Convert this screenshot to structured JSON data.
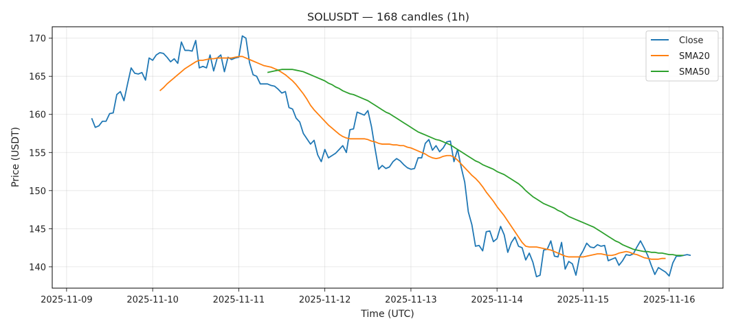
{
  "chart_data": {
    "type": "line",
    "title": "SOLUSDT — 168 candles (1h)",
    "xlabel": "Time (UTC)",
    "ylabel": "Price (USDT)",
    "x_ticks": [
      "2025-11-09",
      "2025-11-10",
      "2025-11-11",
      "2025-11-12",
      "2025-11-13",
      "2025-11-14",
      "2025-11-15",
      "2025-11-16"
    ],
    "y_ticks": [
      140,
      145,
      150,
      155,
      160,
      165,
      170
    ],
    "xlim": [
      "2025-11-08T20:00",
      "2025-11-16T15:00"
    ],
    "ylim": [
      137.2,
      171.5
    ],
    "grid": true,
    "legend_position": "top-right",
    "series": [
      {
        "name": "Close",
        "color": "#1f77b4",
        "start": "2025-11-09T07:00",
        "interval_hours": 1,
        "values": [
          159.5,
          158.3,
          158.5,
          159.1,
          159.1,
          160.1,
          160.2,
          162.6,
          163.0,
          161.8,
          164.0,
          166.1,
          165.4,
          165.3,
          165.5,
          164.5,
          167.4,
          167.1,
          167.8,
          168.1,
          168.0,
          167.5,
          166.9,
          167.3,
          166.7,
          169.5,
          168.4,
          168.4,
          168.3,
          169.7,
          166.1,
          166.3,
          166.1,
          167.8,
          165.7,
          167.4,
          167.8,
          165.6,
          167.5,
          167.2,
          167.4,
          167.5,
          170.3,
          170.0,
          166.8,
          165.2,
          165.0,
          164.0,
          164.0,
          164.0,
          163.8,
          163.7,
          163.3,
          162.8,
          163.0,
          160.9,
          160.7,
          159.5,
          159.0,
          157.5,
          156.8,
          156.1,
          156.6,
          154.7,
          153.8,
          155.4,
          154.3,
          154.6,
          154.9,
          155.4,
          155.9,
          155.0,
          158.0,
          158.1,
          160.3,
          160.1,
          159.9,
          160.5,
          158.4,
          155.5,
          152.8,
          153.3,
          152.9,
          153.1,
          153.8,
          154.2,
          153.9,
          153.4,
          153.0,
          152.8,
          152.9,
          154.3,
          154.3,
          156.2,
          156.7,
          155.3,
          155.9,
          155.1,
          155.6,
          156.4,
          156.5,
          153.8,
          155.4,
          153.1,
          151.1,
          147.2,
          145.5,
          142.7,
          142.8,
          142.1,
          144.6,
          144.7,
          143.3,
          143.7,
          145.3,
          144.2,
          141.9,
          143.2,
          143.9,
          142.7,
          142.5,
          140.9,
          141.8,
          140.6,
          138.7,
          138.9,
          142.2,
          142.3,
          143.4,
          141.4,
          141.3,
          143.2,
          139.7,
          140.7,
          140.4,
          138.9,
          141.3,
          142.1,
          143.1,
          142.6,
          142.5,
          142.9,
          142.7,
          142.8,
          140.8,
          141.0,
          141.2,
          140.2,
          140.8,
          141.6,
          141.5,
          141.7,
          142.6,
          143.4,
          142.5,
          141.5,
          140.2,
          139.0,
          139.9,
          139.6,
          139.3,
          138.8,
          140.5,
          141.4,
          141.4,
          141.5,
          141.6,
          141.5
        ]
      },
      {
        "name": "SMA20",
        "color": "#ff7f0e",
        "start": "2025-11-10T02:00",
        "interval_hours": 1,
        "values": [
          163.1,
          163.5,
          164.0,
          164.4,
          164.8,
          165.2,
          165.6,
          166.0,
          166.3,
          166.6,
          166.9,
          167.1,
          167.1,
          167.2,
          167.3,
          167.3,
          167.4,
          167.4,
          167.4,
          167.4,
          167.4,
          167.5,
          167.6,
          167.6,
          167.4,
          167.2,
          167.0,
          166.8,
          166.6,
          166.4,
          166.3,
          166.2,
          166.0,
          165.8,
          165.5,
          165.2,
          164.8,
          164.4,
          163.9,
          163.3,
          162.7,
          162.0,
          161.2,
          160.6,
          160.1,
          159.6,
          159.1,
          158.6,
          158.2,
          157.8,
          157.4,
          157.1,
          156.9,
          156.8,
          156.8,
          156.8,
          156.8,
          156.8,
          156.7,
          156.5,
          156.4,
          156.2,
          156.1,
          156.1,
          156.1,
          156.0,
          156.0,
          155.9,
          155.9,
          155.7,
          155.6,
          155.4,
          155.2,
          155.0,
          154.8,
          154.5,
          154.3,
          154.2,
          154.3,
          154.5,
          154.6,
          154.6,
          154.4,
          154.0,
          153.5,
          153.0,
          152.5,
          152.0,
          151.6,
          151.1,
          150.5,
          149.8,
          149.2,
          148.6,
          147.9,
          147.3,
          146.7,
          146.0,
          145.3,
          144.6,
          143.9,
          143.2,
          142.7,
          142.6,
          142.6,
          142.6,
          142.5,
          142.4,
          142.3,
          142.2,
          142.0,
          141.8,
          141.6,
          141.4,
          141.3,
          141.3,
          141.3,
          141.3,
          141.3,
          141.4,
          141.5,
          141.6,
          141.7,
          141.7,
          141.6,
          141.5,
          141.5,
          141.6,
          141.8,
          141.9,
          142.0,
          141.9,
          141.7,
          141.6,
          141.4,
          141.2,
          141.1,
          141.0,
          141.0,
          141.0,
          141.1,
          141.1
        ]
      },
      {
        "name": "SMA50",
        "color": "#2ca02c",
        "start": "2025-11-11T08:00",
        "interval_hours": 1,
        "values": [
          165.5,
          165.6,
          165.7,
          165.8,
          165.9,
          165.9,
          165.9,
          165.9,
          165.8,
          165.7,
          165.6,
          165.4,
          165.2,
          165.0,
          164.8,
          164.6,
          164.4,
          164.1,
          163.9,
          163.6,
          163.4,
          163.1,
          162.9,
          162.7,
          162.6,
          162.4,
          162.2,
          162.0,
          161.8,
          161.5,
          161.2,
          160.9,
          160.6,
          160.3,
          160.1,
          159.8,
          159.5,
          159.2,
          158.9,
          158.6,
          158.3,
          158.0,
          157.7,
          157.5,
          157.3,
          157.1,
          156.9,
          156.7,
          156.6,
          156.4,
          156.2,
          156.0,
          155.7,
          155.4,
          155.1,
          154.8,
          154.5,
          154.2,
          153.9,
          153.7,
          153.4,
          153.2,
          153.0,
          152.8,
          152.5,
          152.3,
          152.1,
          151.8,
          151.5,
          151.2,
          150.9,
          150.5,
          150.0,
          149.6,
          149.2,
          148.9,
          148.6,
          148.3,
          148.1,
          147.9,
          147.7,
          147.4,
          147.2,
          146.9,
          146.6,
          146.4,
          146.2,
          146.0,
          145.8,
          145.6,
          145.4,
          145.2,
          144.9,
          144.6,
          144.3,
          144.0,
          143.7,
          143.4,
          143.2,
          142.9,
          142.7,
          142.5,
          142.3,
          142.2,
          142.1,
          142.0,
          142.0,
          141.9,
          141.9,
          141.8,
          141.8,
          141.7,
          141.6,
          141.6,
          141.5,
          141.5,
          141.5
        ]
      }
    ]
  }
}
